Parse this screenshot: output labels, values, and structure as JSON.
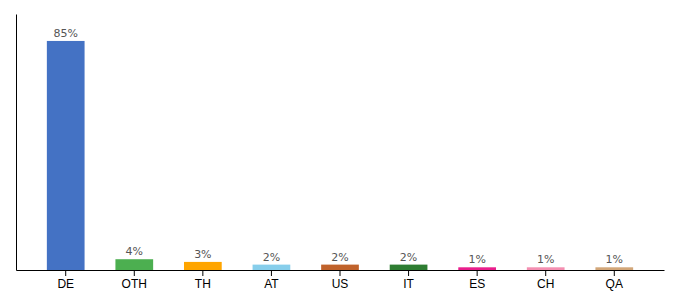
{
  "chart_data": {
    "type": "bar",
    "categories": [
      "DE",
      "OTH",
      "TH",
      "AT",
      "US",
      "IT",
      "ES",
      "CH",
      "QA"
    ],
    "values": [
      85,
      4,
      3,
      2,
      2,
      2,
      1,
      1,
      1
    ],
    "value_labels": [
      "85%",
      "4%",
      "3%",
      "2%",
      "2%",
      "2%",
      "1%",
      "1%",
      "1%"
    ],
    "colors": [
      "#4472C4",
      "#4CAF50",
      "#FFA500",
      "#87CEEB",
      "#C0622B",
      "#2E7D32",
      "#E91E8C",
      "#F48FB1",
      "#D2A679"
    ],
    "ylim": [
      0,
      95
    ],
    "yticks": [],
    "grid": false,
    "data_labels": true,
    "tick_labels": "x"
  }
}
